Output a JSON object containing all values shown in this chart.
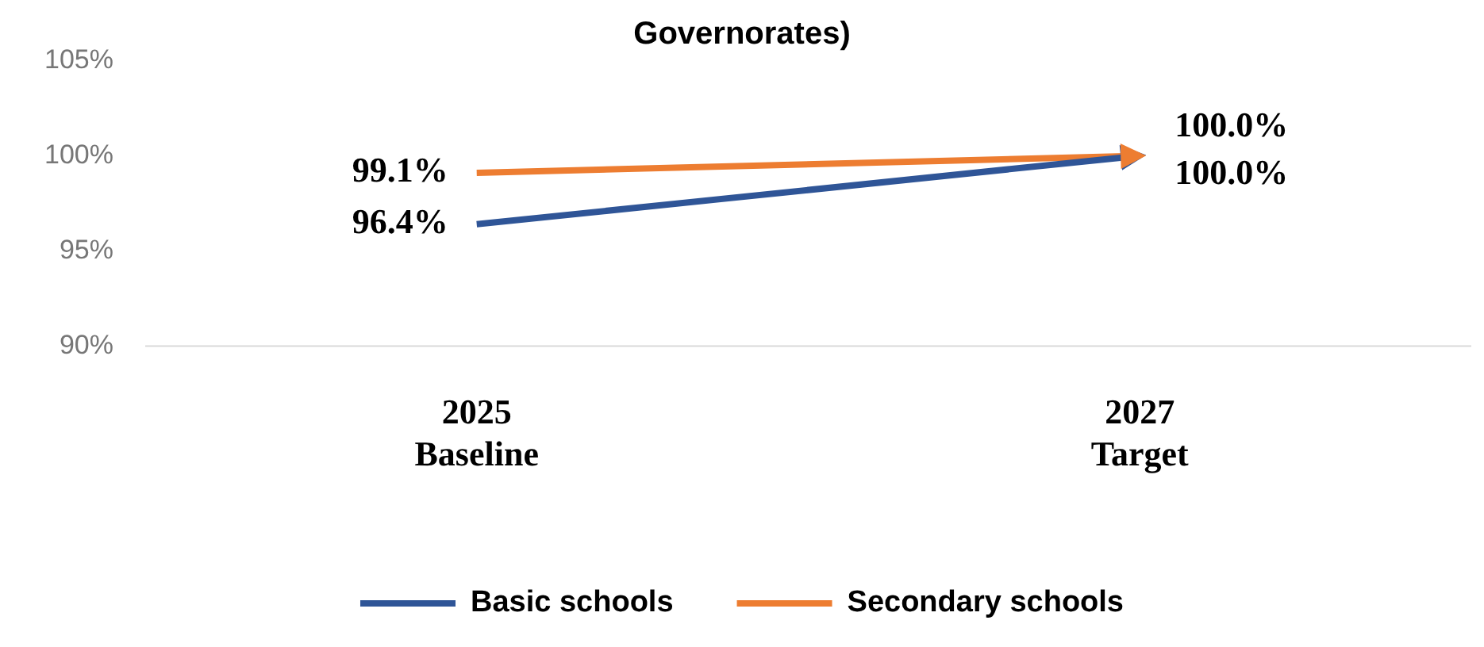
{
  "chart_data": {
    "type": "line",
    "title": "Governorates)",
    "categories": [
      "2025\nBaseline",
      "2027\nTarget"
    ],
    "series": [
      {
        "name": "Basic schools",
        "color": "#2f5597",
        "values": [
          96.4,
          100
        ],
        "value_labels": [
          "96.4%",
          "100.0%"
        ]
      },
      {
        "name": "Secondary schools",
        "color": "#ed7d31",
        "values": [
          99.1,
          100
        ],
        "value_labels": [
          "99.1%",
          "100.0%"
        ]
      }
    ],
    "ylim": [
      90,
      105
    ],
    "yticks": [
      {
        "value": 90,
        "label": "90%"
      },
      {
        "value": 95,
        "label": "95%"
      },
      {
        "value": 100,
        "label": "100%"
      },
      {
        "value": 105,
        "label": "105%"
      }
    ],
    "grid": false,
    "legend": "bottom",
    "line_style": "solid"
  }
}
